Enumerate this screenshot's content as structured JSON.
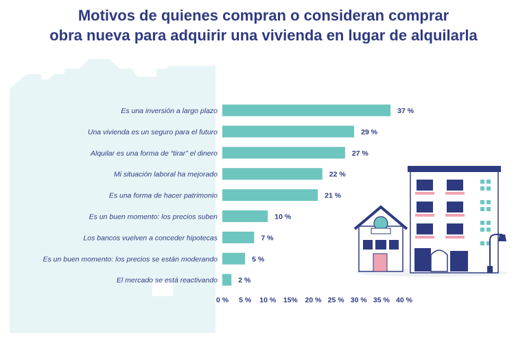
{
  "title_lines": [
    "Motivos de quienes compran o consideran comprar",
    "obra nueva para adquirir una vivienda en lugar de alquilarla"
  ],
  "colors": {
    "title": "#2e3a80",
    "bar": "#6dc5bf",
    "background_shape": "#e8f5f6"
  },
  "chart_data": {
    "type": "bar",
    "orientation": "horizontal",
    "title": "Motivos de quienes compran o consideran comprar obra nueva para adquirir una vivienda en lugar de alquilarla",
    "categories": [
      "Es una inversión a largo plazo",
      "Una vivienda es un seguro para el futuro",
      "Alquilar es una forma de “tirar” el dinero",
      "Mi situación laboral ha mejorado",
      "Es una forma de hacer patrimonio",
      "Es un buen momento: los precios suben",
      "Los bancos vuelven a conceder hipotecas",
      "Es un buen momento: los precios se están moderando",
      "El mercado se está reactivando"
    ],
    "values": [
      37,
      29,
      27,
      22,
      21,
      10,
      7,
      5,
      2
    ],
    "value_labels": [
      "37 %",
      "29 %",
      "27  %",
      "22 %",
      "21 %",
      "10 %",
      "7 %",
      "5 %",
      "2 %"
    ],
    "xlim": [
      0,
      40
    ],
    "xticks": [
      0,
      5,
      10,
      15,
      20,
      25,
      30,
      35,
      40
    ],
    "xtick_labels": [
      "0 %",
      "5 %",
      "10 %",
      "15%",
      "20 %",
      "25 %",
      "30 %",
      "35 %",
      "40 %"
    ],
    "grid": false,
    "legend": "none"
  },
  "illustration": {
    "icons": [
      "house-icon",
      "apartment-building-icon",
      "street-lamp-icon"
    ]
  }
}
